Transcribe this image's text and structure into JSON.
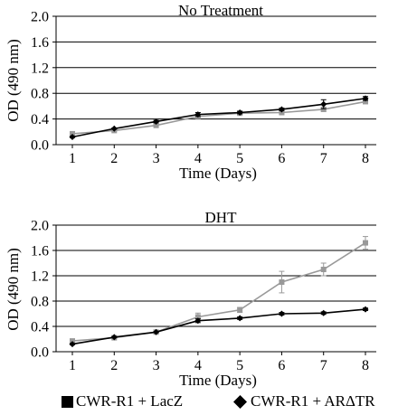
{
  "chart_data": [
    {
      "type": "line",
      "title": "No Treatment",
      "xlabel": "Time (Days)",
      "ylabel": "OD (490 nm)",
      "x": [
        1,
        2,
        3,
        4,
        5,
        6,
        7,
        8
      ],
      "x_ticks": [
        "1",
        "2",
        "3",
        "4",
        "5",
        "6",
        "7",
        "8"
      ],
      "ylim": [
        0,
        2.0
      ],
      "y_ticks": [
        "0.0",
        "0.4",
        "0.8",
        "1.2",
        "1.6",
        "2.0"
      ],
      "y_tick_values": [
        0,
        0.4,
        0.8,
        1.2,
        1.6,
        2.0
      ],
      "grid": true,
      "series": [
        {
          "name": "CWR-R1 + LacZ",
          "color": "#999999",
          "marker": "square",
          "values": [
            0.17,
            0.22,
            0.3,
            0.44,
            0.49,
            0.5,
            0.55,
            0.67
          ],
          "errors": [
            0.02,
            0.01,
            0.01,
            0.02,
            0.02,
            0.02,
            0.03,
            0.03
          ]
        },
        {
          "name": "CWR-R1 + ARΔTR",
          "color": "#000000",
          "marker": "diamond",
          "values": [
            0.12,
            0.25,
            0.36,
            0.47,
            0.5,
            0.55,
            0.63,
            0.72
          ],
          "errors": [
            0.01,
            0.01,
            0.02,
            0.03,
            0.02,
            0.02,
            0.07,
            0.03
          ]
        }
      ]
    },
    {
      "type": "line",
      "title": "DHT",
      "xlabel": "Time (Days)",
      "ylabel": "OD (490 nm)",
      "x": [
        1,
        2,
        3,
        4,
        5,
        6,
        7,
        8
      ],
      "x_ticks": [
        "1",
        "2",
        "3",
        "4",
        "5",
        "6",
        "7",
        "8"
      ],
      "ylim": [
        0,
        2.0
      ],
      "y_ticks": [
        "0.0",
        "0.4",
        "0.8",
        "1.2",
        "1.6",
        "2.0"
      ],
      "y_tick_values": [
        0,
        0.4,
        0.8,
        1.2,
        1.6,
        2.0
      ],
      "grid": true,
      "series": [
        {
          "name": "CWR-R1 + LacZ",
          "color": "#999999",
          "marker": "square",
          "values": [
            0.17,
            0.22,
            0.31,
            0.55,
            0.66,
            1.1,
            1.3,
            1.72
          ],
          "errors": [
            0.02,
            0.01,
            0.01,
            0.06,
            0.04,
            0.17,
            0.1,
            0.1
          ]
        },
        {
          "name": "CWR-R1 + ARΔTR",
          "color": "#000000",
          "marker": "diamond",
          "values": [
            0.12,
            0.23,
            0.31,
            0.49,
            0.53,
            0.6,
            0.61,
            0.67
          ],
          "errors": [
            0.01,
            0.01,
            0.01,
            0.03,
            0.02,
            0.02,
            0.02,
            0.02
          ]
        }
      ]
    }
  ],
  "legend": {
    "placement": "bottom",
    "items": [
      {
        "label": "CWR-R1 + LacZ",
        "marker": "square",
        "color": "#000000"
      },
      {
        "label": "CWR-R1 + ARΔTR",
        "marker": "diamond",
        "color": "#000000"
      }
    ]
  }
}
